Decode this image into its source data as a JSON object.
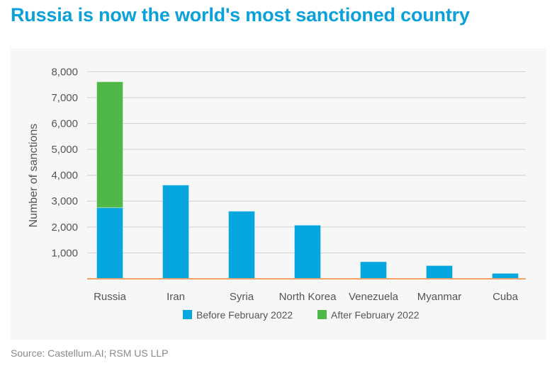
{
  "title": "Russia is now the world's most sanctioned country",
  "source": "Source: Castellum.AI; RSM US LLP",
  "chart_data": {
    "type": "bar",
    "stacked": true,
    "title": "Russia is now the world's most sanctioned country",
    "xlabel": "",
    "ylabel": "Number of sanctions",
    "ylim": [
      0,
      8000
    ],
    "yticks": [
      1000,
      2000,
      3000,
      4000,
      5000,
      6000,
      7000,
      8000
    ],
    "ytick_labels": [
      "1,000",
      "2,000",
      "3,000",
      "4,000",
      "5,000",
      "6,000",
      "7,000",
      "8,000"
    ],
    "grid": true,
    "legend_position": "bottom",
    "categories": [
      "Russia",
      "Iran",
      "Syria",
      "North Korea",
      "Venezuela",
      "Myanmar",
      "Cuba"
    ],
    "series": [
      {
        "name": "Before February 2022",
        "color": "#06a6de",
        "values": [
          2750,
          3620,
          2610,
          2070,
          660,
          510,
          210
        ]
      },
      {
        "name": "After February 2022",
        "color": "#50b848",
        "values": [
          4860,
          0,
          0,
          0,
          0,
          0,
          0
        ]
      }
    ],
    "baseline_color": "#f4a46a",
    "grid_color": "#d6d6d6"
  }
}
